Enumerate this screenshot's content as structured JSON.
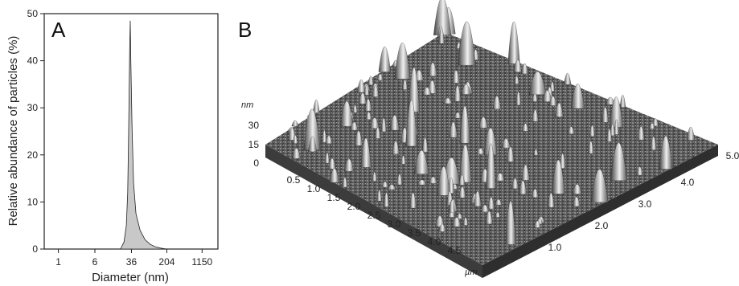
{
  "chart_data": [
    {
      "type": "area",
      "panel_label": "A",
      "xlabel": "Diameter (nm)",
      "ylabel": "Relative abundance of particles (%)",
      "ylim": [
        0,
        50
      ],
      "yticks": [
        "0",
        "10",
        "20",
        "30",
        "40",
        "50"
      ],
      "xticks": [
        "1",
        "6",
        "36",
        "204",
        "1150"
      ],
      "x_scale": "log",
      "fill_color": "#c8c8c8",
      "series": [
        {
          "x": [
            21,
            25,
            28,
            30,
            31,
            32,
            33,
            34,
            35,
            37,
            40,
            45,
            55,
            70,
            90,
            115,
            150,
            200
          ],
          "y": [
            0,
            1.5,
            5,
            12,
            22,
            32,
            43,
            48.5,
            40,
            26,
            14,
            7.5,
            4,
            2,
            1,
            0.5,
            0.2,
            0
          ]
        }
      ]
    },
    {
      "type": "surface",
      "panel_label": "B",
      "z_unit": "nm",
      "z_ticks": [
        "0",
        "15",
        "30"
      ],
      "xy_unit": "µm",
      "left_axis_ticks": [
        "0.5",
        "1.0",
        "1.5",
        "2.0",
        "2.5",
        "3.0",
        "3.5",
        "4.0",
        "4.5"
      ],
      "right_axis_ticks": [
        "1.0",
        "2.0",
        "3.0",
        "4.0",
        "5.0"
      ],
      "colormap": "grayscale"
    }
  ]
}
